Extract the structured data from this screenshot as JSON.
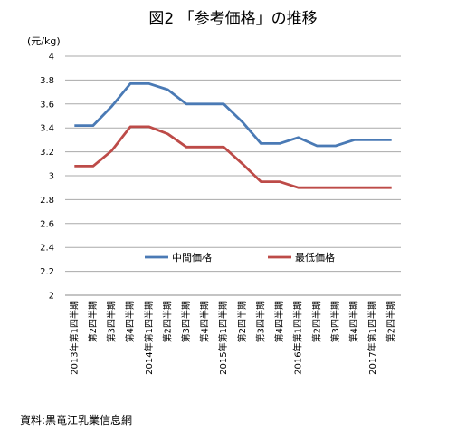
{
  "chart_data": {
    "type": "line",
    "title": "図2 「参考価格」の推移",
    "ylabel": "(元/kg)",
    "ylim": [
      2,
      4
    ],
    "yticks": [
      "2",
      "2.2",
      "2.4",
      "2.6",
      "2.8",
      "3",
      "3.2",
      "3.4",
      "3.6",
      "3.8",
      "4"
    ],
    "grid": true,
    "legend": "inside-center",
    "categories": [
      "2013年第1四半期",
      "第2四半期",
      "第3四半期",
      "第4四半期",
      "2014年第1四半期",
      "第2四半期",
      "第3四半期",
      "第4四半期",
      "2015年第1四半期",
      "第2四半期",
      "第3四半期",
      "第4四半期",
      "2016年第1四半期",
      "第2四半期",
      "第3四半期",
      "第4四半期",
      "2017年第1四半期",
      "第2四半期"
    ],
    "series": [
      {
        "name": "中間価格",
        "color": "#4a7ab5",
        "values": [
          3.42,
          3.42,
          3.58,
          3.77,
          3.77,
          3.72,
          3.6,
          3.6,
          3.6,
          3.45,
          3.27,
          3.27,
          3.32,
          3.25,
          3.25,
          3.3,
          3.3,
          3.3
        ]
      },
      {
        "name": "最低価格",
        "color": "#bd4b48",
        "values": [
          3.08,
          3.08,
          3.21,
          3.41,
          3.41,
          3.35,
          3.24,
          3.24,
          3.24,
          3.1,
          2.95,
          2.95,
          2.9,
          2.9,
          2.9,
          2.9,
          2.9,
          2.9
        ]
      }
    ],
    "source": "資料:黒竜江乳業信息網"
  }
}
